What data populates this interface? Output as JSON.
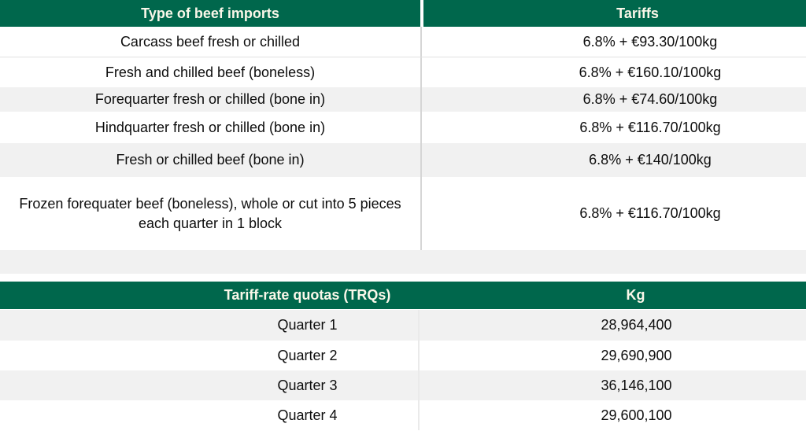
{
  "colors": {
    "header_bg": "#00674C",
    "header_text": "#FAF7E9",
    "shaded_row_bg": "#F1F1F1",
    "row_bg": "#FFFFFF",
    "divider_line": "#D6D6D6",
    "body_text": "#0D0D0D"
  },
  "tariff_table": {
    "headers": [
      "Type of beef imports",
      "Tariffs"
    ],
    "rows": [
      {
        "type": "Carcass beef fresh or chilled",
        "tariff": "6.8% + €93.30/100kg",
        "shaded": false
      },
      {
        "type": "Fresh and chilled beef (boneless)",
        "tariff": "6.8% + €160.10/100kg",
        "shaded": false
      },
      {
        "type": "Forequarter fresh or chilled (bone in)",
        "tariff": "6.8% + €74.60/100kg",
        "shaded": true
      },
      {
        "type": "Hindquarter fresh or chilled (bone in)",
        "tariff": "6.8% + €116.70/100kg",
        "shaded": false
      },
      {
        "type": "Fresh or chilled beef (bone in)",
        "tariff": "6.8% + €140/100kg",
        "shaded": true
      },
      {
        "type": "Frozen forequater beef (boneless), whole or cut into 5 pieces each quarter in 1 block",
        "tariff": "6.8% + €116.70/100kg",
        "shaded": false
      }
    ]
  },
  "trq_table": {
    "headers": [
      "Tariff-rate quotas (TRQs)",
      "Kg"
    ],
    "rows": [
      {
        "quarter": "Quarter 1",
        "kg": "28,964,400",
        "shaded": true
      },
      {
        "quarter": "Quarter 2",
        "kg": "29,690,900",
        "shaded": false
      },
      {
        "quarter": "Quarter 3",
        "kg": "36,146,100",
        "shaded": true
      },
      {
        "quarter": "Quarter 4",
        "kg": "29,600,100",
        "shaded": false
      }
    ]
  },
  "chart_data": [
    {
      "type": "table",
      "title": "Type of beef imports vs Tariffs",
      "columns": [
        "Type of beef imports",
        "Tariffs"
      ],
      "rows": [
        [
          "Carcass beef fresh or chilled",
          "6.8% + €93.30/100kg"
        ],
        [
          "Fresh and chilled beef (boneless)",
          "6.8% + €160.10/100kg"
        ],
        [
          "Forequarter fresh or chilled (bone in)",
          "6.8% + €74.60/100kg"
        ],
        [
          "Hindquarter fresh or chilled (bone in)",
          "6.8% + €116.70/100kg"
        ],
        [
          "Fresh or chilled beef (bone in)",
          "6.8% + €140/100kg"
        ],
        [
          "Frozen forequater beef (boneless), whole or cut into 5 pieces each quarter in 1 block",
          "6.8% + €116.70/100kg"
        ]
      ]
    },
    {
      "type": "table",
      "title": "Tariff-rate quotas (TRQs) in Kg",
      "columns": [
        "Tariff-rate quotas (TRQs)",
        "Kg"
      ],
      "rows": [
        [
          "Quarter 1",
          28964400
        ],
        [
          "Quarter 2",
          29690900
        ],
        [
          "Quarter 3",
          36146100
        ],
        [
          "Quarter 4",
          29600100
        ]
      ]
    }
  ]
}
